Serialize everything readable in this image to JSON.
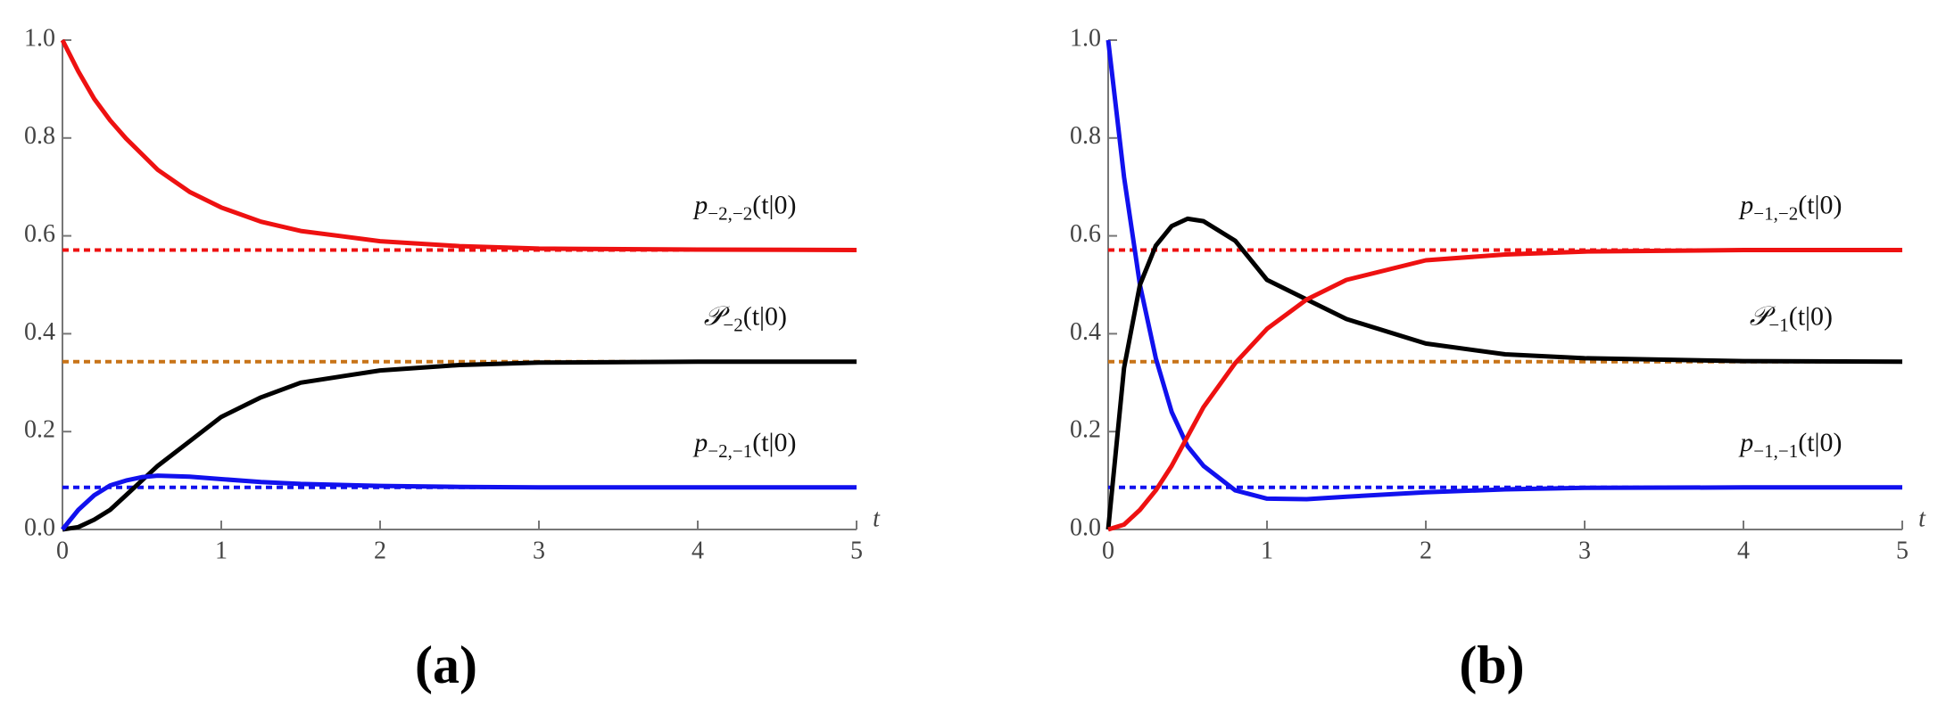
{
  "chart_data": [
    {
      "type": "line",
      "panel_label": "(a)",
      "xlabel": "t",
      "x": [
        0,
        0.1,
        0.2,
        0.3,
        0.4,
        0.5,
        0.6,
        0.8,
        1,
        1.25,
        1.5,
        2,
        2.5,
        3,
        4,
        5
      ],
      "series": [
        {
          "color": "#ee1111",
          "values": [
            1,
            0.936,
            0.88,
            0.836,
            0.799,
            0.767,
            0.735,
            0.69,
            0.658,
            0.629,
            0.61,
            0.589,
            0.579,
            0.574,
            0.572,
            0.571
          ]
        },
        {
          "color": "#000000",
          "values": [
            0,
            0.005,
            0.02,
            0.04,
            0.07,
            0.1,
            0.13,
            0.18,
            0.23,
            0.27,
            0.3,
            0.325,
            0.336,
            0.341,
            0.343,
            0.343
          ]
        },
        {
          "color": "#1111ee",
          "values": [
            0,
            0.04,
            0.07,
            0.09,
            0.1,
            0.107,
            0.11,
            0.108,
            0.103,
            0.097,
            0.093,
            0.089,
            0.087,
            0.086,
            0.086,
            0.086
          ]
        }
      ],
      "reference_lines": [
        {
          "value": 0.571,
          "color": "#ee1111",
          "label": {
            "symbol": "p",
            "subscript": "−2,−2",
            "argument": "(t|0)"
          }
        },
        {
          "value": 0.343,
          "color": "#c87418",
          "label": {
            "symbol": "𝒫",
            "subscript": "−2",
            "argument": "(t|0)"
          }
        },
        {
          "value": 0.086,
          "color": "#1111ee",
          "label": {
            "symbol": "p",
            "subscript": "−2,−1",
            "argument": "(t|0)"
          }
        }
      ],
      "xlim": [
        0,
        5
      ],
      "xticks": [
        0,
        1,
        2,
        3,
        4,
        5
      ],
      "ylim": [
        0,
        1
      ],
      "yticks": [
        {
          "value": 0,
          "label": "0.0"
        },
        {
          "value": 0.2,
          "label": "0.2"
        },
        {
          "value": 0.4,
          "label": "0.4"
        },
        {
          "value": 0.6,
          "label": "0.6"
        },
        {
          "value": 0.8,
          "label": "0.8"
        },
        {
          "value": 1,
          "label": "1.0"
        }
      ]
    },
    {
      "type": "line",
      "panel_label": "(b)",
      "xlabel": "t",
      "x": [
        0,
        0.1,
        0.2,
        0.3,
        0.4,
        0.5,
        0.6,
        0.8,
        1,
        1.25,
        1.5,
        2,
        2.5,
        3,
        4,
        5
      ],
      "series": [
        {
          "color": "#1111ee",
          "values": [
            1,
            0.72,
            0.5,
            0.35,
            0.24,
            0.17,
            0.13,
            0.08,
            0.063,
            0.062,
            0.067,
            0.076,
            0.082,
            0.085,
            0.086,
            0.086
          ]
        },
        {
          "color": "#000000",
          "values": [
            0,
            0.33,
            0.5,
            0.58,
            0.62,
            0.635,
            0.63,
            0.59,
            0.51,
            0.47,
            0.43,
            0.38,
            0.358,
            0.35,
            0.344,
            0.343
          ]
        },
        {
          "color": "#ee1111",
          "values": [
            0,
            0.01,
            0.04,
            0.08,
            0.13,
            0.19,
            0.25,
            0.34,
            0.41,
            0.47,
            0.51,
            0.55,
            0.562,
            0.568,
            0.571,
            0.571
          ]
        }
      ],
      "reference_lines": [
        {
          "value": 0.571,
          "color": "#ee1111",
          "label": {
            "symbol": "p",
            "subscript": "−1,−2",
            "argument": "(t|0)"
          }
        },
        {
          "value": 0.343,
          "color": "#c87418",
          "label": {
            "symbol": "𝒫",
            "subscript": "−1",
            "argument": "(t|0)"
          }
        },
        {
          "value": 0.086,
          "color": "#1111ee",
          "label": {
            "symbol": "p",
            "subscript": "−1,−1",
            "argument": "(t|0)"
          }
        }
      ],
      "xlim": [
        0,
        5
      ],
      "xticks": [
        0,
        1,
        2,
        3,
        4,
        5
      ],
      "ylim": [
        0,
        1
      ],
      "yticks": [
        {
          "value": 0,
          "label": "0.0"
        },
        {
          "value": 0.2,
          "label": "0.2"
        },
        {
          "value": 0.4,
          "label": "0.4"
        },
        {
          "value": 0.6,
          "label": "0.6"
        },
        {
          "value": 0.8,
          "label": "0.8"
        },
        {
          "value": 1,
          "label": "1.0"
        }
      ]
    }
  ]
}
